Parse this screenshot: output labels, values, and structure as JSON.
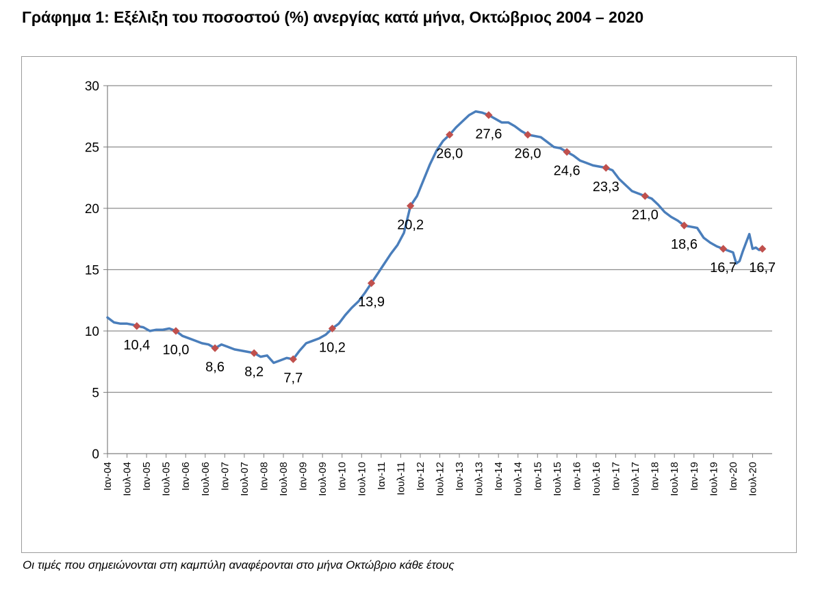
{
  "title": "Γράφημα 1: Εξέλιξη του ποσοστού (%) ανεργίας κατά μήνα, Οκτώβριος 2004 – 2020",
  "footnote": "Οι τιμές που σημειώνονται στη καμπύλη αναφέρονται στο μήνα Οκτώβριο κάθε έτους",
  "chart_data": {
    "type": "line",
    "title": "Γράφημα 1: Εξέλιξη του ποσοστού (%) ανεργίας κατά μήνα, Οκτώβριος 2004 – 2020",
    "ylim": [
      0,
      30
    ],
    "yticks": [
      0,
      5,
      10,
      15,
      20,
      25,
      30
    ],
    "grid": true,
    "line_color": "#4a7ebb",
    "marker_color": "#c0504d",
    "xtick_labels": [
      "Ιαν-04",
      "Ιουλ-04",
      "Ιαν-05",
      "Ιουλ-05",
      "Ιαν-06",
      "Ιουλ-06",
      "Ιαν-07",
      "Ιουλ-07",
      "Ιαν-08",
      "Ιουλ-08",
      "Ιαν-09",
      "Ιουλ-09",
      "Ιαν-10",
      "Ιουλ-10",
      "Ιαν-11",
      "Ιουλ-11",
      "Ιαν-12",
      "Ιουλ-12",
      "Ιαν-13",
      "Ιουλ-13",
      "Ιαν-14",
      "Ιουλ-14",
      "Ιαν-15",
      "Ιουλ-15",
      "Ιαν-16",
      "Ιουλ-16",
      "Ιαν-17",
      "Ιουλ-17",
      "Ιαν-18",
      "Ιουλ-18",
      "Ιαν-19",
      "Ιουλ-19",
      "Ιαν-20",
      "Ιουλ-20"
    ],
    "series": [
      {
        "points": [
          [
            "2004-01",
            11.1
          ],
          [
            "2004-03",
            10.7
          ],
          [
            "2004-05",
            10.6
          ],
          [
            "2004-07",
            10.6
          ],
          [
            "2004-09",
            10.5
          ],
          [
            "2004-10",
            10.4
          ],
          [
            "2004-12",
            10.3
          ],
          [
            "2005-02",
            10.0
          ],
          [
            "2005-04",
            10.1
          ],
          [
            "2005-06",
            10.1
          ],
          [
            "2005-08",
            10.2
          ],
          [
            "2005-10",
            10.0
          ],
          [
            "2005-12",
            9.6
          ],
          [
            "2006-02",
            9.4
          ],
          [
            "2006-04",
            9.2
          ],
          [
            "2006-06",
            9.0
          ],
          [
            "2006-08",
            8.9
          ],
          [
            "2006-10",
            8.6
          ],
          [
            "2006-12",
            8.9
          ],
          [
            "2007-02",
            8.7
          ],
          [
            "2007-04",
            8.5
          ],
          [
            "2007-06",
            8.4
          ],
          [
            "2007-08",
            8.3
          ],
          [
            "2007-10",
            8.2
          ],
          [
            "2007-12",
            7.9
          ],
          [
            "2008-02",
            8.0
          ],
          [
            "2008-04",
            7.4
          ],
          [
            "2008-06",
            7.6
          ],
          [
            "2008-08",
            7.8
          ],
          [
            "2008-10",
            7.7
          ],
          [
            "2008-12",
            8.4
          ],
          [
            "2009-02",
            9.0
          ],
          [
            "2009-04",
            9.2
          ],
          [
            "2009-06",
            9.4
          ],
          [
            "2009-08",
            9.7
          ],
          [
            "2009-10",
            10.2
          ],
          [
            "2009-12",
            10.6
          ],
          [
            "2010-02",
            11.3
          ],
          [
            "2010-04",
            11.9
          ],
          [
            "2010-06",
            12.4
          ],
          [
            "2010-08",
            13.1
          ],
          [
            "2010-10",
            13.9
          ],
          [
            "2010-12",
            14.7
          ],
          [
            "2011-02",
            15.5
          ],
          [
            "2011-04",
            16.3
          ],
          [
            "2011-06",
            17.0
          ],
          [
            "2011-08",
            18.0
          ],
          [
            "2011-10",
            20.2
          ],
          [
            "2011-12",
            21.0
          ],
          [
            "2012-02",
            22.3
          ],
          [
            "2012-04",
            23.6
          ],
          [
            "2012-06",
            24.7
          ],
          [
            "2012-08",
            25.5
          ],
          [
            "2012-10",
            26.0
          ],
          [
            "2012-12",
            26.6
          ],
          [
            "2013-02",
            27.1
          ],
          [
            "2013-04",
            27.6
          ],
          [
            "2013-06",
            27.9
          ],
          [
            "2013-08",
            27.8
          ],
          [
            "2013-10",
            27.6
          ],
          [
            "2013-12",
            27.3
          ],
          [
            "2014-02",
            27.0
          ],
          [
            "2014-04",
            27.0
          ],
          [
            "2014-06",
            26.7
          ],
          [
            "2014-08",
            26.3
          ],
          [
            "2014-10",
            26.0
          ],
          [
            "2014-12",
            25.9
          ],
          [
            "2015-02",
            25.8
          ],
          [
            "2015-04",
            25.4
          ],
          [
            "2015-06",
            25.0
          ],
          [
            "2015-08",
            24.9
          ],
          [
            "2015-10",
            24.6
          ],
          [
            "2015-12",
            24.3
          ],
          [
            "2016-02",
            23.9
          ],
          [
            "2016-04",
            23.7
          ],
          [
            "2016-06",
            23.5
          ],
          [
            "2016-08",
            23.4
          ],
          [
            "2016-10",
            23.3
          ],
          [
            "2016-12",
            23.1
          ],
          [
            "2017-02",
            22.4
          ],
          [
            "2017-04",
            21.9
          ],
          [
            "2017-06",
            21.4
          ],
          [
            "2017-08",
            21.2
          ],
          [
            "2017-10",
            21.0
          ],
          [
            "2017-12",
            20.8
          ],
          [
            "2018-02",
            20.3
          ],
          [
            "2018-04",
            19.7
          ],
          [
            "2018-06",
            19.3
          ],
          [
            "2018-08",
            19.0
          ],
          [
            "2018-10",
            18.6
          ],
          [
            "2018-12",
            18.5
          ],
          [
            "2019-02",
            18.4
          ],
          [
            "2019-04",
            17.6
          ],
          [
            "2019-06",
            17.2
          ],
          [
            "2019-08",
            16.9
          ],
          [
            "2019-10",
            16.7
          ],
          [
            "2019-12",
            16.5
          ],
          [
            "2020-01",
            16.4
          ],
          [
            "2020-02",
            15.5
          ],
          [
            "2020-03",
            15.7
          ],
          [
            "2020-04",
            16.5
          ],
          [
            "2020-05",
            17.2
          ],
          [
            "2020-06",
            17.9
          ],
          [
            "2020-07",
            16.7
          ],
          [
            "2020-08",
            16.8
          ],
          [
            "2020-09",
            16.6
          ],
          [
            "2020-10",
            16.7
          ]
        ]
      }
    ],
    "labels": [
      {
        "x": "2004-10",
        "y": 10.4,
        "text": "10,4"
      },
      {
        "x": "2005-10",
        "y": 10.0,
        "text": "10,0"
      },
      {
        "x": "2006-10",
        "y": 8.6,
        "text": "8,6"
      },
      {
        "x": "2007-10",
        "y": 8.2,
        "text": "8,2"
      },
      {
        "x": "2008-10",
        "y": 7.7,
        "text": "7,7"
      },
      {
        "x": "2009-10",
        "y": 10.2,
        "text": "10,2"
      },
      {
        "x": "2010-10",
        "y": 13.9,
        "text": "13,9"
      },
      {
        "x": "2011-10",
        "y": 20.2,
        "text": "20,2"
      },
      {
        "x": "2012-10",
        "y": 26.0,
        "text": "26,0"
      },
      {
        "x": "2013-10",
        "y": 27.6,
        "text": "27,6"
      },
      {
        "x": "2014-10",
        "y": 26.0,
        "text": "26,0"
      },
      {
        "x": "2015-10",
        "y": 24.6,
        "text": "24,6"
      },
      {
        "x": "2016-10",
        "y": 23.3,
        "text": "23,3"
      },
      {
        "x": "2017-10",
        "y": 21.0,
        "text": "21,0"
      },
      {
        "x": "2018-10",
        "y": 18.6,
        "text": "18,6"
      },
      {
        "x": "2019-10",
        "y": 16.7,
        "text": "16,7"
      },
      {
        "x": "2020-10",
        "y": 16.7,
        "text": "16,7"
      }
    ]
  }
}
